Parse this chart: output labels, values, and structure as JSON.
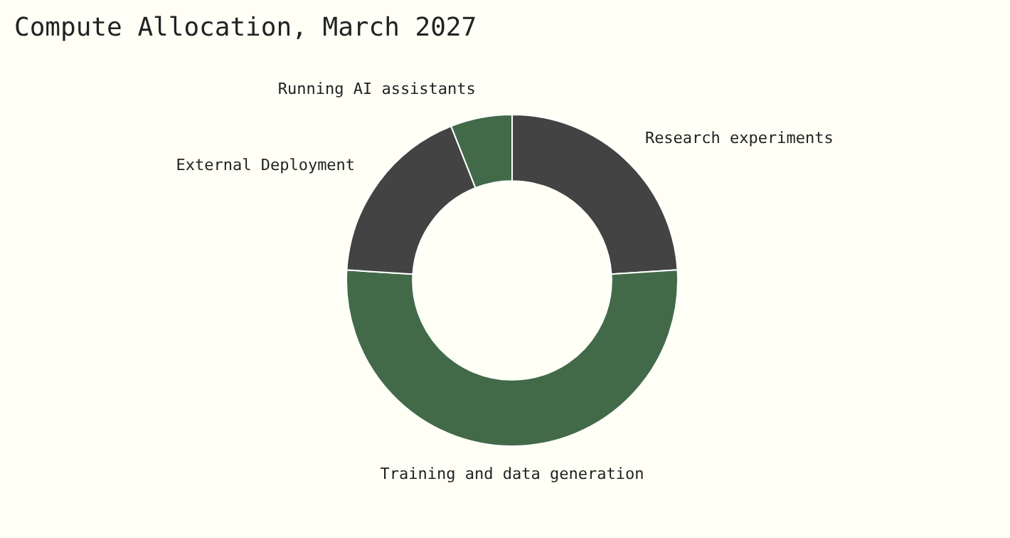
{
  "chart_data": {
    "type": "donut",
    "title": "Compute Allocation, March 2027",
    "categories": [
      "Research experiments",
      "Training and data generation",
      "External Deployment",
      "Running AI assistants"
    ],
    "values": [
      24,
      52,
      18,
      6
    ],
    "colors": [
      "#434343",
      "#436a48",
      "#434343",
      "#436a48"
    ],
    "legend": false
  }
}
